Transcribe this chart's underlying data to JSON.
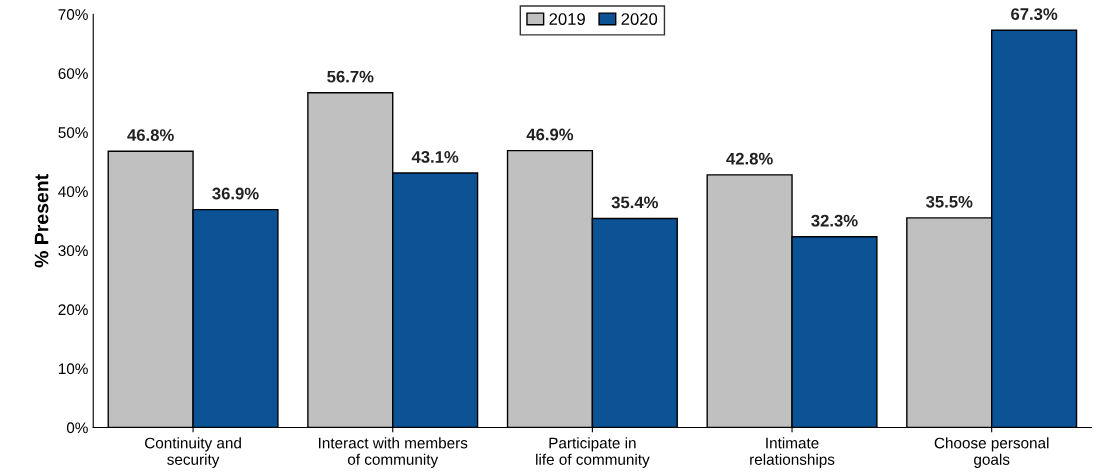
{
  "chart_data": {
    "type": "bar",
    "ylabel": "% Present",
    "categories": [
      "Continuity and\nsecurity",
      "Interact with members\nof community",
      "Participate in\nlife of community",
      "Intimate\nrelationships",
      "Choose personal\ngoals"
    ],
    "series": [
      {
        "name": "2019",
        "color": "#c0c0c0",
        "values": [
          46.8,
          56.7,
          46.9,
          42.8,
          35.5
        ],
        "value_labels": [
          "46.8%",
          "56.7%",
          "46.9%",
          "42.8%",
          "35.5%"
        ]
      },
      {
        "name": "2020",
        "color": "#0b5394",
        "values": [
          36.9,
          43.1,
          35.4,
          32.3,
          67.3
        ],
        "value_labels": [
          "36.9%",
          "43.1%",
          "35.4%",
          "32.3%",
          "67.3%"
        ]
      }
    ],
    "ylim": [
      0,
      70
    ],
    "yticks": [
      {
        "value": 0,
        "label": "0%"
      },
      {
        "value": 10,
        "label": "10%"
      },
      {
        "value": 20,
        "label": "20%"
      },
      {
        "value": 30,
        "label": "30%"
      },
      {
        "value": 40,
        "label": "40%"
      },
      {
        "value": 50,
        "label": "50%"
      },
      {
        "value": 60,
        "label": "60%"
      },
      {
        "value": 70,
        "label": "70%"
      }
    ],
    "legend": "top"
  }
}
